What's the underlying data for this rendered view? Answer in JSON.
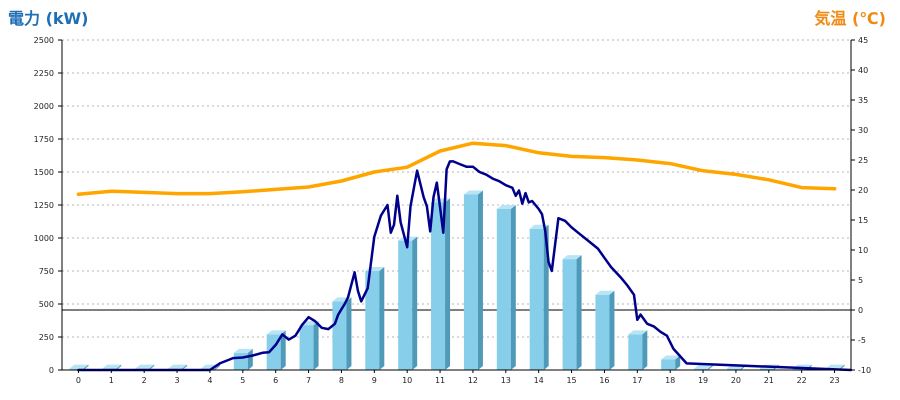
{
  "chart_data": {
    "type": "bar",
    "ylabel": "電力 (kW)",
    "y2label": "気温 (℃)",
    "categories": [
      "0",
      "1",
      "2",
      "3",
      "4",
      "5",
      "6",
      "7",
      "8",
      "9",
      "10",
      "11",
      "12",
      "13",
      "14",
      "15",
      "16",
      "17",
      "18",
      "19",
      "20",
      "21",
      "22",
      "23"
    ],
    "ylim": [
      0,
      2500
    ],
    "yticks": [
      0,
      250,
      500,
      750,
      1000,
      1250,
      1500,
      1750,
      2000,
      2250,
      2500
    ],
    "y2lim": [
      -10,
      45
    ],
    "y2ticks": [
      -10,
      -5,
      0,
      5,
      10,
      15,
      20,
      25,
      30,
      35,
      40,
      45
    ],
    "grid": true,
    "colors": {
      "bar": "#87ceeb",
      "bar_side": "#4e9ab8",
      "bar_top": "#b8e4f5",
      "power_line": "#00008b",
      "temp_line": "#ffa500"
    },
    "series": [
      {
        "kind": "bar",
        "values": [
          10,
          10,
          10,
          10,
          10,
          130,
          270,
          340,
          520,
          750,
          980,
          1270,
          1330,
          1220,
          1070,
          840,
          570,
          270,
          80,
          10,
          10,
          10,
          10,
          10
        ]
      },
      {
        "kind": "line",
        "axis": "y1",
        "x": [
          0,
          4,
          4.3,
          4.7,
          5,
          5.3,
          5.6,
          5.8,
          6,
          6.2,
          6.4,
          6.6,
          6.8,
          7,
          7.2,
          7.4,
          7.6,
          7.8,
          7.9,
          8,
          8.1,
          8.2,
          8.4,
          8.5,
          8.6,
          8.8,
          9,
          9.2,
          9.4,
          9.5,
          9.6,
          9.7,
          9.8,
          10,
          10.1,
          10.3,
          10.5,
          10.6,
          10.7,
          10.8,
          10.9,
          11,
          11.1,
          11.2,
          11.3,
          11.4,
          11.6,
          11.8,
          12,
          12.2,
          12.4,
          12.6,
          12.8,
          13,
          13.2,
          13.3,
          13.4,
          13.5,
          13.6,
          13.7,
          13.8,
          14,
          14.1,
          14.2,
          14.3,
          14.4,
          14.6,
          14.8,
          15,
          15.2,
          15.5,
          15.8,
          16,
          16.2,
          16.5,
          16.7,
          16.9,
          17,
          17.1,
          17.3,
          17.5,
          17.7,
          17.9,
          18.1,
          18.5,
          23.5
        ],
        "values": [
          0,
          0,
          50,
          90,
          95,
          110,
          130,
          135,
          190,
          270,
          230,
          260,
          340,
          400,
          370,
          320,
          310,
          350,
          420,
          460,
          500,
          550,
          740,
          600,
          520,
          620,
          1010,
          1170,
          1250,
          1040,
          1100,
          1320,
          1120,
          930,
          1240,
          1510,
          1310,
          1240,
          1050,
          1310,
          1420,
          1230,
          1040,
          1520,
          1580,
          1580,
          1560,
          1540,
          1540,
          1500,
          1480,
          1450,
          1430,
          1400,
          1380,
          1320,
          1360,
          1260,
          1340,
          1270,
          1280,
          1220,
          1180,
          1050,
          820,
          750,
          1150,
          1130,
          1080,
          1040,
          980,
          920,
          850,
          780,
          700,
          640,
          570,
          380,
          420,
          350,
          330,
          290,
          260,
          160,
          50,
          0
        ]
      },
      {
        "kind": "line",
        "axis": "y2",
        "x": [
          0,
          1,
          2,
          3,
          4,
          5,
          6,
          7,
          8,
          9,
          10,
          11,
          12,
          13,
          14,
          15,
          16,
          17,
          18,
          19,
          20,
          21,
          22,
          23
        ],
        "values": [
          19.3,
          19.8,
          19.6,
          19.4,
          19.4,
          19.7,
          20.1,
          20.5,
          21.5,
          23.0,
          23.8,
          26.5,
          27.8,
          27.4,
          26.2,
          25.6,
          25.4,
          25.0,
          24.4,
          23.2,
          22.6,
          21.7,
          20.4,
          20.2
        ]
      }
    ]
  }
}
